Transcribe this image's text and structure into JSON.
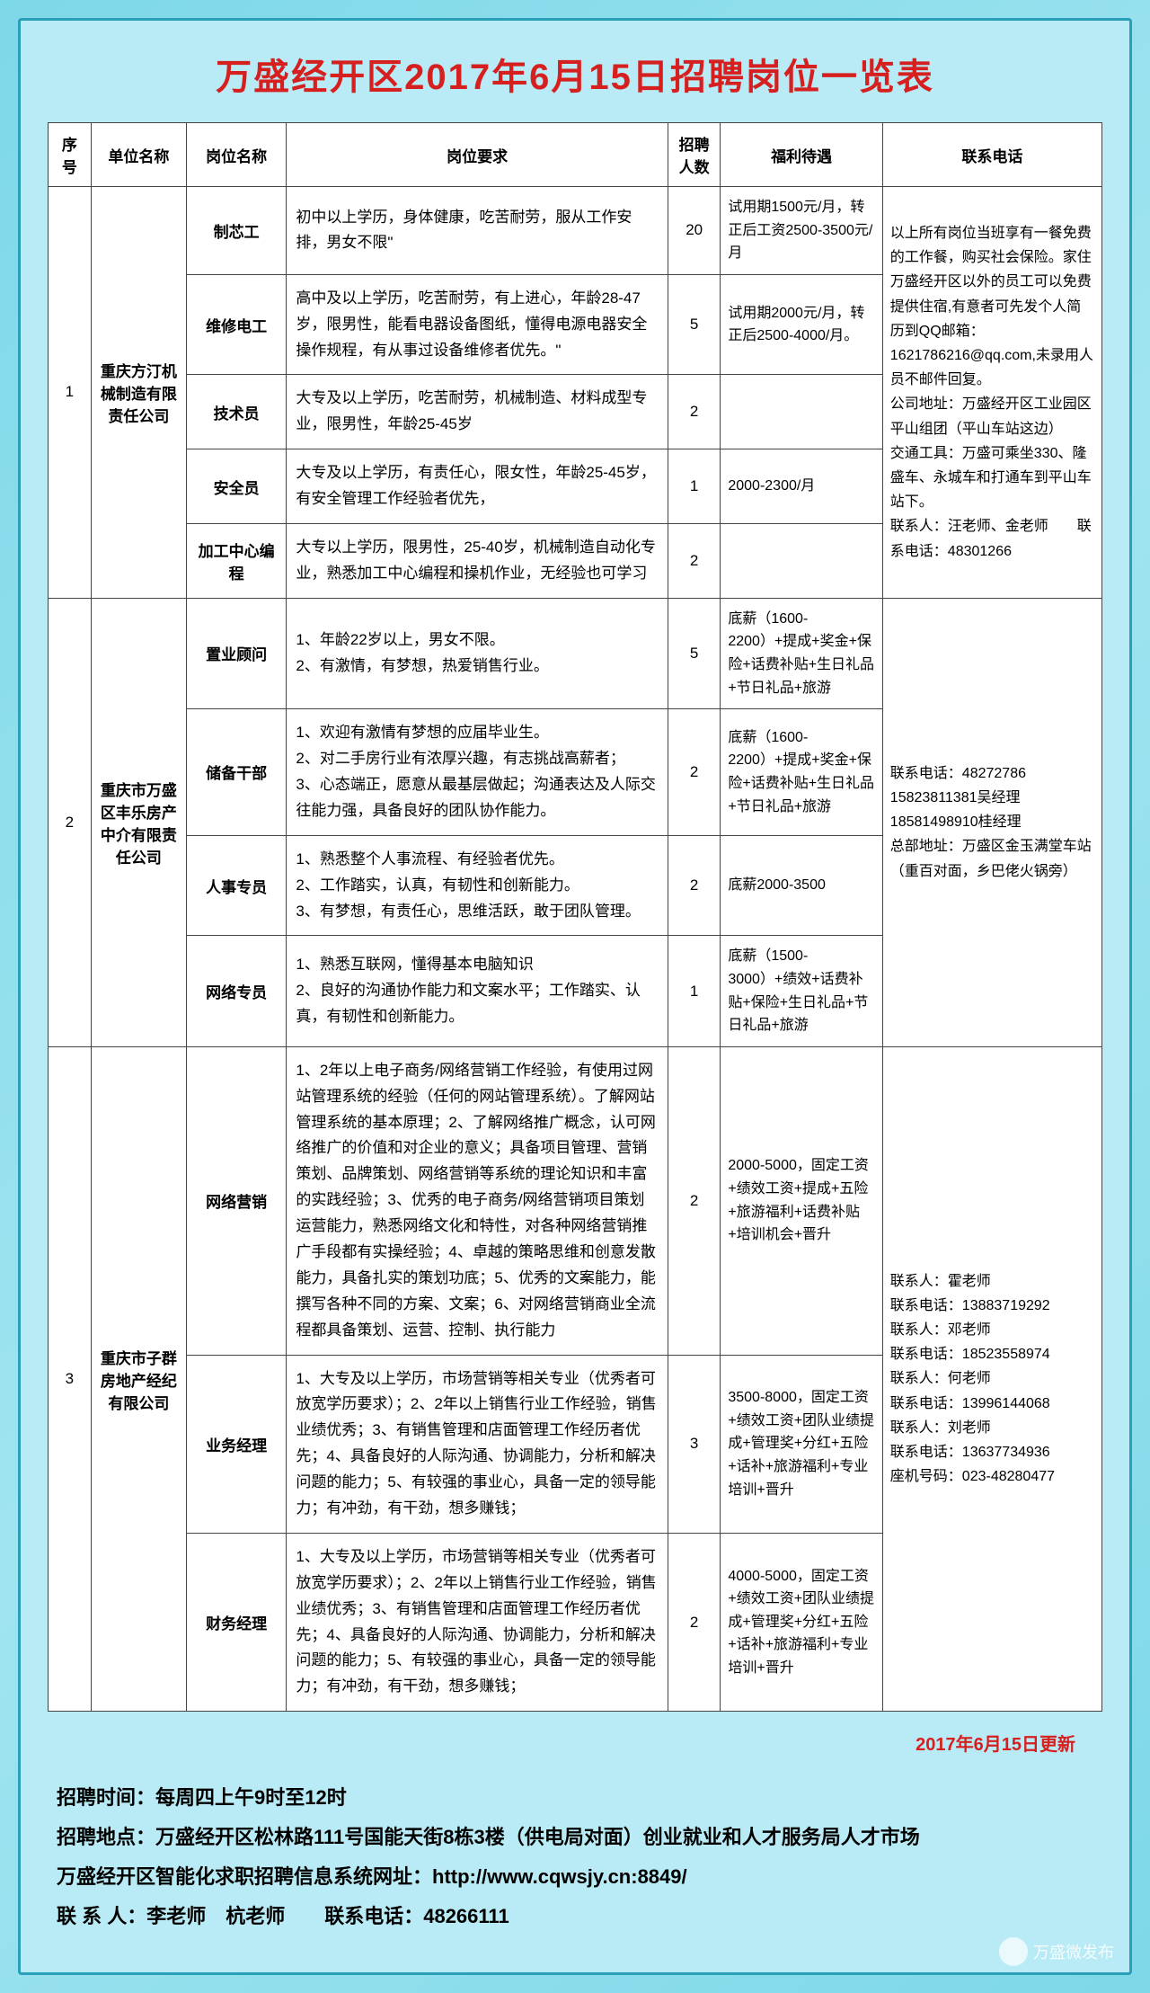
{
  "title": "万盛经开区2017年6月15日招聘岗位一览表",
  "headers": {
    "seq": "序号",
    "company": "单位名称",
    "post": "岗位名称",
    "req": "岗位要求",
    "num": "招聘人数",
    "benefit": "福利待遇",
    "contact": "联系电话"
  },
  "c1": {
    "seq": "1",
    "name": "重庆方汀机械制造有限责任公司",
    "contact": "以上所有岗位当班享有一餐免费的工作餐，购买社会保险。家住万盛经开区以外的员工可以免费提供住宿,有意者可先发个人简历到QQ邮箱：1621786216@qq.com,未录用人员不邮件回复。\n公司地址：万盛经开区工业园区平山组团（平山车站这边）\n交通工具：万盛可乘坐330、隆盛车、永城车和打通车到平山车站下。\n联系人：汪老师、金老师　　联系电话：48301266",
    "p1": {
      "post": "制芯工",
      "req": "初中以上学历，身体健康，吃苦耐劳，服从工作安排，男女不限\"",
      "num": "20",
      "benefit": "试用期1500元/月，转正后工资2500-3500元/月"
    },
    "p2": {
      "post": "维修电工",
      "req": "高中及以上学历，吃苦耐劳，有上进心，年龄28-47岁，限男性，能看电器设备图纸，懂得电源电器安全操作规程，有从事过设备维修者优先。\"",
      "num": "5",
      "benefit": "试用期2000元/月，转正后2500-4000/月。"
    },
    "p3": {
      "post": "技术员",
      "req": "大专及以上学历，吃苦耐劳，机械制造、材料成型专业，限男性，年龄25-45岁",
      "num": "2",
      "benefit": ""
    },
    "p4": {
      "post": "安全员",
      "req": "大专及以上学历，有责任心，限女性，年龄25-45岁，有安全管理工作经验者优先，",
      "num": "1",
      "benefit": "2000-2300/月"
    },
    "p5": {
      "post": "加工中心编程",
      "req": "大专以上学历，限男性，25-40岁，机械制造自动化专业，熟悉加工中心编程和操机作业，无经验也可学习",
      "num": "2",
      "benefit": ""
    }
  },
  "c2": {
    "seq": "2",
    "name": "重庆市万盛区丰乐房产中介有限责任公司",
    "contact": "联系电话：48272786\n15823811381吴经理\n18581498910桂经理\n总部地址：万盛区金玉满堂车站（重百对面，乡巴佬火锅旁）",
    "p1": {
      "post": "置业顾问",
      "req": "1、年龄22岁以上，男女不限。\n2、有激情，有梦想，热爱销售行业。",
      "num": "5",
      "benefit": "底薪（1600-2200）+提成+奖金+保险+话费补贴+生日礼品+节日礼品+旅游"
    },
    "p2": {
      "post": "储备干部",
      "req": "1、欢迎有激情有梦想的应届毕业生。\n2、对二手房行业有浓厚兴趣，有志挑战高薪者；\n3、心态端正，愿意从最基层做起；沟通表达及人际交往能力强，具备良好的团队协作能力。",
      "num": "2",
      "benefit": "底薪（1600-2200）+提成+奖金+保险+话费补贴+生日礼品+节日礼品+旅游"
    },
    "p3": {
      "post": "人事专员",
      "req": "1、熟悉整个人事流程、有经验者优先。\n2、工作踏实，认真，有韧性和创新能力。\n3、有梦想，有责任心，思维活跃，敢于团队管理。",
      "num": "2",
      "benefit": "底薪2000-3500"
    },
    "p4": {
      "post": "网络专员",
      "req": "1、熟悉互联网，懂得基本电脑知识\n2、良好的沟通协作能力和文案水平；工作踏实、认真，有韧性和创新能力。",
      "num": "1",
      "benefit": "底薪（1500-3000）+绩效+话费补贴+保险+生日礼品+节日礼品+旅游"
    }
  },
  "c3": {
    "seq": "3",
    "name": "重庆市子群房地产经纪有限公司",
    "contact": "联系人：霍老师\n联系电话：13883719292\n联系人：邓老师\n联系电话：18523558974\n联系人：何老师\n联系电话：13996144068\n联系人：刘老师\n联系电话：13637734936\n座机号码：023-48280477",
    "p1": {
      "post": "网络营销",
      "req": "1、2年以上电子商务/网络营销工作经验，有使用过网站管理系统的经验（任何的网站管理系统）。了解网站管理系统的基本原理；2、了解网络推广概念，认可网络推广的价值和对企业的意义；具备项目管理、营销策划、品牌策划、网络营销等系统的理论知识和丰富的实践经验；3、优秀的电子商务/网络营销项目策划运营能力，熟悉网络文化和特性，对各种网络营销推广手段都有实操经验；4、卓越的策略思维和创意发散能力，具备扎实的策划功底；5、优秀的文案能力，能撰写各种不同的方案、文案；6、对网络营销商业全流程都具备策划、运营、控制、执行能力",
      "num": "2",
      "benefit": "2000-5000，固定工资+绩效工资+提成+五险+旅游福利+话费补贴+培训机会+晋升"
    },
    "p2": {
      "post": "业务经理",
      "req": "1、大专及以上学历，市场营销等相关专业（优秀者可放宽学历要求）；2、2年以上销售行业工作经验，销售业绩优秀；3、有销售管理和店面管理工作经历者优先；4、具备良好的人际沟通、协调能力，分析和解决问题的能力；5、有较强的事业心，具备一定的领导能力；有冲劲，有干劲，想多赚钱；",
      "num": "3",
      "benefit": "3500-8000，固定工资+绩效工资+团队业绩提成+管理奖+分红+五险+话补+旅游福利+专业培训+晋升"
    },
    "p3": {
      "post": "财务经理",
      "req": "1、大专及以上学历，市场营销等相关专业（优秀者可放宽学历要求）；2、2年以上销售行业工作经验，销售业绩优秀；3、有销售管理和店面管理工作经历者优先；4、具备良好的人际沟通、协调能力，分析和解决问题的能力；5、有较强的事业心，具备一定的领导能力；有冲劲，有干劲，想多赚钱；",
      "num": "2",
      "benefit": "4000-5000，固定工资+绩效工资+团队业绩提成+管理奖+分红+五险+话补+旅游福利+专业培训+晋升"
    }
  },
  "update": "2017年6月15日更新",
  "footer": {
    "l1": "招聘时间：每周四上午9时至12时",
    "l2": "招聘地点：万盛经开区松林路111号国能天街8栋3楼（供电局对面）创业就业和人才服务局人才市场",
    "l3": "万盛经开区智能化求职招聘信息系统网址：http://www.cqwsjy.cn:8849/",
    "l4": "联 系 人：李老师　杭老师　　联系电话：48266111"
  },
  "watermark": "万盛微发布"
}
